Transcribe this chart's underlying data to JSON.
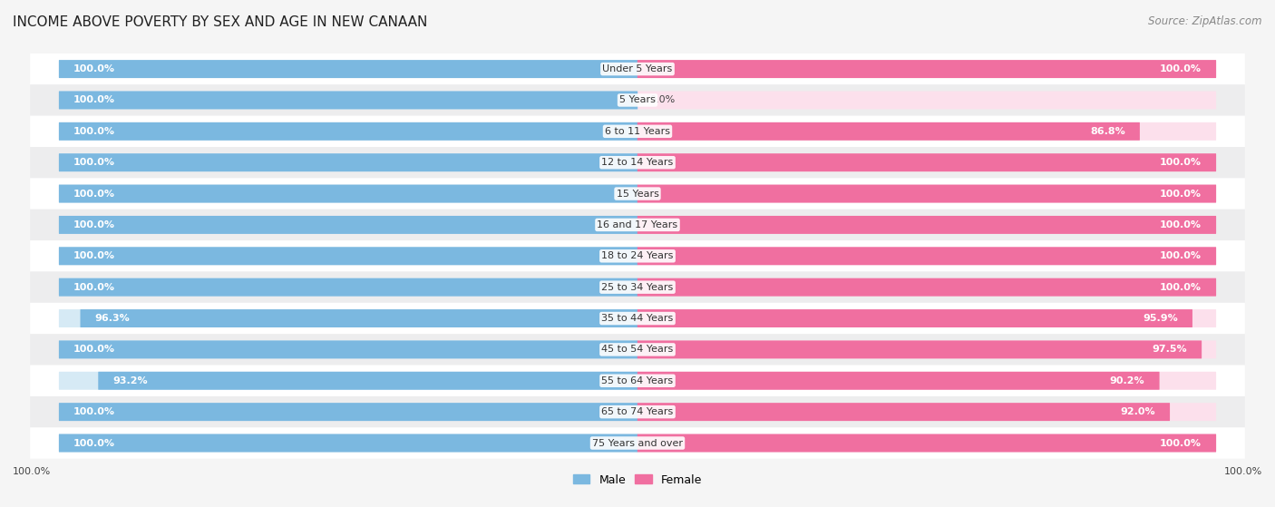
{
  "title": "INCOME ABOVE POVERTY BY SEX AND AGE IN NEW CANAAN",
  "source": "Source: ZipAtlas.com",
  "categories": [
    "Under 5 Years",
    "5 Years",
    "6 to 11 Years",
    "12 to 14 Years",
    "15 Years",
    "16 and 17 Years",
    "18 to 24 Years",
    "25 to 34 Years",
    "35 to 44 Years",
    "45 to 54 Years",
    "55 to 64 Years",
    "65 to 74 Years",
    "75 Years and over"
  ],
  "male_values": [
    100.0,
    100.0,
    100.0,
    100.0,
    100.0,
    100.0,
    100.0,
    100.0,
    96.3,
    100.0,
    93.2,
    100.0,
    100.0
  ],
  "female_values": [
    100.0,
    0.0,
    86.8,
    100.0,
    100.0,
    100.0,
    100.0,
    100.0,
    95.9,
    97.5,
    90.2,
    92.0,
    100.0
  ],
  "male_color": "#7bb8e0",
  "female_color": "#f06fa0",
  "male_bg_color": "#d6eaf5",
  "female_bg_color": "#fce0ec",
  "row_colors": [
    "#ffffff",
    "#ededee"
  ],
  "title_fontsize": 11,
  "source_fontsize": 8.5,
  "label_fontsize": 8,
  "category_fontsize": 8,
  "legend_fontsize": 9,
  "max_value": 100.0
}
